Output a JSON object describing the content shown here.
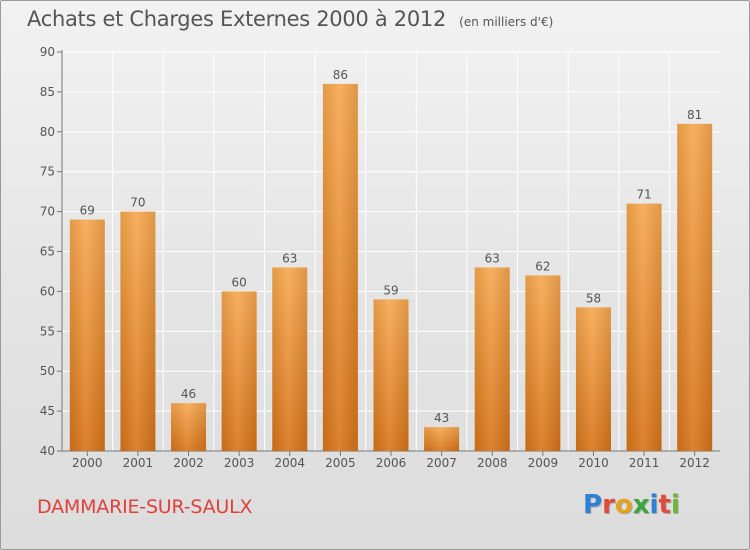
{
  "header": {
    "title": "Achats et Charges Externes 2000 à 2012",
    "subtitle": "(en milliers d'€)"
  },
  "footer": {
    "commune": "DAMMARIE-SUR-SAULX",
    "logo": [
      "P",
      "r",
      "o",
      "x",
      "i",
      "t",
      "i"
    ]
  },
  "colors": {
    "bar_top": "#f7a84e",
    "bar_bottom": "#d77418",
    "grid": "#ffffff",
    "axis_text": "#555555"
  },
  "chart_data": {
    "type": "bar",
    "categories": [
      "2000",
      "2001",
      "2002",
      "2003",
      "2004",
      "2005",
      "2006",
      "2007",
      "2008",
      "2009",
      "2010",
      "2011",
      "2012"
    ],
    "values": [
      69,
      70,
      46,
      60,
      63,
      86,
      59,
      43,
      63,
      62,
      58,
      71,
      81
    ],
    "ylim": [
      40,
      90
    ],
    "yticks": [
      40,
      45,
      50,
      55,
      60,
      65,
      70,
      75,
      80,
      85,
      90
    ],
    "grid": true,
    "data_labels": true
  }
}
